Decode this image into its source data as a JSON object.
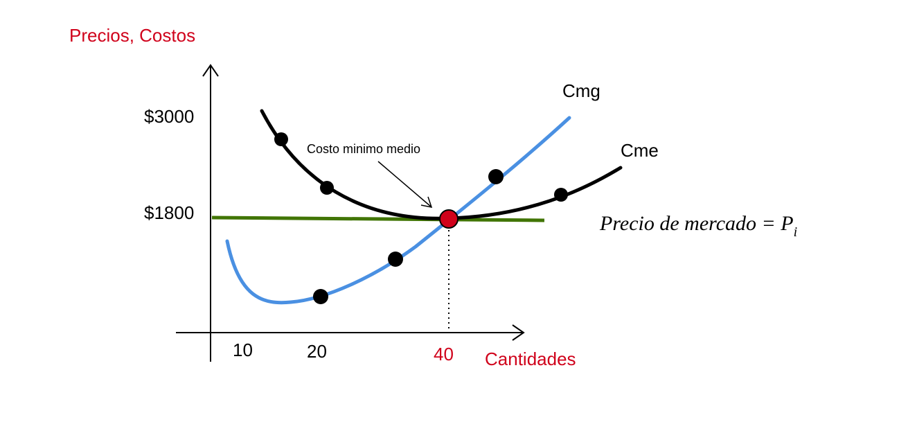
{
  "axes": {
    "y_title": "Precios, Costos",
    "x_title": "Cantidades",
    "y_ticks": [
      "$3000",
      "$1800"
    ],
    "x_ticks": [
      "10",
      "20",
      "40"
    ]
  },
  "curves": {
    "marginal_cost_label": "Cmg",
    "average_cost_label": "Cme"
  },
  "annotation": {
    "min_avg_cost": "Costo minimo medio"
  },
  "market_price": {
    "text": "Precio de mercado = P",
    "subscript": "i"
  },
  "colors": {
    "accent_red": "#d0021b",
    "marginal_cost": "#4a90e2",
    "average_cost": "#000000",
    "price_line": "#417505",
    "equilibrium_point": "#d0021b"
  }
}
